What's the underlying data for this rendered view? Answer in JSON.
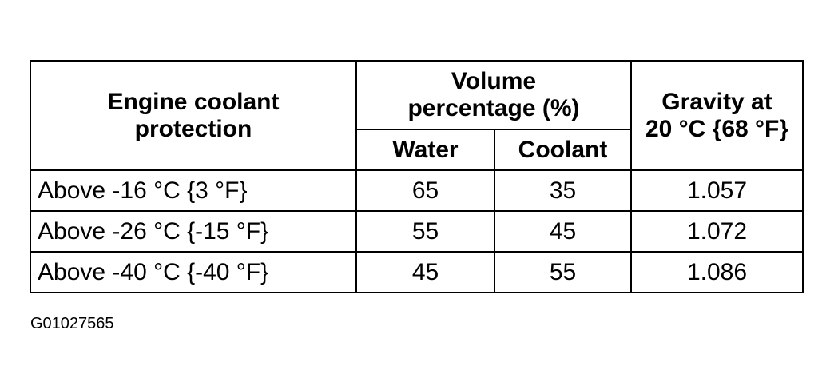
{
  "header": {
    "protection": "Engine coolant protection",
    "volume": "Volume percentage (%)",
    "water": "Water",
    "coolant": "Coolant",
    "gravity": "Gravity at 20 °C {68 °F}"
  },
  "table": {
    "rows": [
      [
        "Above -16 °C {3 °F}",
        "65",
        "35",
        "1.057"
      ],
      [
        "Above -26 °C {-15 °F}",
        "55",
        "45",
        "1.072"
      ],
      [
        "Above -40 °C {-40 °F}",
        "45",
        "55",
        "1.086"
      ]
    ]
  },
  "figure_id": "G01027565"
}
